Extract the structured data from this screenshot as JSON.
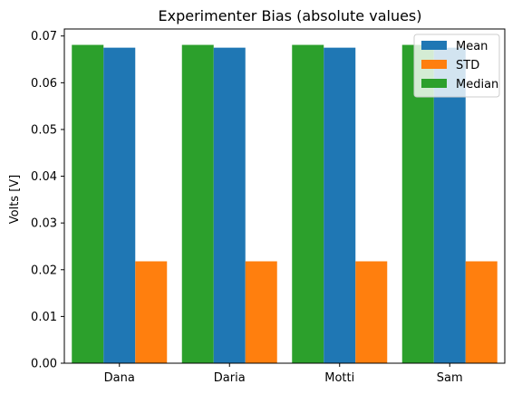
{
  "chart_data": {
    "type": "bar",
    "title": "Experimenter Bias (absolute values)",
    "xlabel": "",
    "ylabel": "Volts [V]",
    "categories": [
      "Dana",
      "Daria",
      "Motti",
      "Sam"
    ],
    "series": [
      {
        "name": "Median",
        "values": [
          0.0681,
          0.0681,
          0.0681,
          0.0681
        ],
        "color": "#2ca02c"
      },
      {
        "name": "Mean",
        "values": [
          0.0675,
          0.0675,
          0.0675,
          0.0675
        ],
        "color": "#1f77b4"
      },
      {
        "name": "STD",
        "values": [
          0.0218,
          0.0218,
          0.0218,
          0.0218
        ],
        "color": "#ff7f0e"
      }
    ],
    "legend_order": [
      "Mean",
      "STD",
      "Median"
    ],
    "legend_position": "top-right",
    "ylim": [
      0,
      0.0715
    ],
    "yticks": [
      "0.00",
      "0.01",
      "0.02",
      "0.03",
      "0.04",
      "0.05",
      "0.06",
      "0.07"
    ],
    "grid": false
  }
}
